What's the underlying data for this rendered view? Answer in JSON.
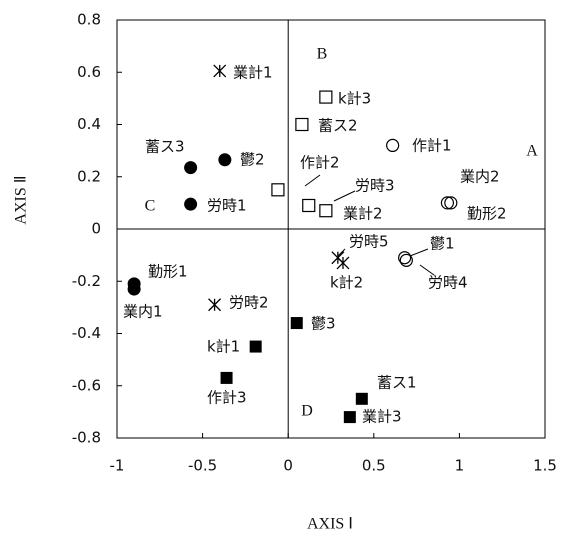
{
  "chart_data": {
    "type": "scatter",
    "x_label": "AXIS Ⅰ",
    "y_label": "AXIS Ⅱ",
    "xlim": [
      -1,
      1.5
    ],
    "xticks": [
      -1,
      -0.5,
      0,
      0.5,
      1,
      1.5
    ],
    "ylim": [
      -0.8,
      0.8
    ],
    "yticks": [
      -0.8,
      -0.6,
      -0.4,
      -0.2,
      0,
      0.2,
      0.4,
      0.6,
      0.8
    ],
    "annotations": [
      "A",
      "B",
      "C",
      "D"
    ],
    "points": [
      {
        "label": "業計1",
        "x": -0.4,
        "y": 0.605,
        "marker": "asterisk"
      },
      {
        "label": "労時2",
        "x": -0.43,
        "y": -0.29,
        "marker": "asterisk"
      },
      {
        "label": "労時5",
        "x": 0.29,
        "y": -0.11,
        "marker": "asterisk"
      },
      {
        "label": "k計2",
        "x": 0.32,
        "y": -0.13,
        "marker": "asterisk"
      },
      {
        "label": "k計3",
        "x": 0.22,
        "y": 0.505,
        "marker": "open-square"
      },
      {
        "label": "蓄ス2",
        "x": 0.08,
        "y": 0.4,
        "marker": "open-square"
      },
      {
        "label": "作計2",
        "x": -0.06,
        "y": 0.15,
        "marker": "open-square"
      },
      {
        "label": "労時3",
        "x": 0.12,
        "y": 0.09,
        "marker": "open-square"
      },
      {
        "label": "業計2",
        "x": 0.22,
        "y": 0.07,
        "marker": "open-square"
      },
      {
        "label": "作計1",
        "x": 0.61,
        "y": 0.32,
        "marker": "open-circle"
      },
      {
        "label": "業内2",
        "x": 0.93,
        "y": 0.1,
        "marker": "open-circle"
      },
      {
        "label": "勤形2",
        "x": 0.95,
        "y": 0.1,
        "marker": "open-circle"
      },
      {
        "label": "鬱1",
        "x": 0.68,
        "y": -0.11,
        "marker": "open-circle"
      },
      {
        "label": "労時4",
        "x": 0.69,
        "y": -0.12,
        "marker": "open-circle"
      },
      {
        "label": "蓄ス3",
        "x": -0.57,
        "y": 0.235,
        "marker": "filled-circle"
      },
      {
        "label": "鬱2",
        "x": -0.37,
        "y": 0.265,
        "marker": "filled-circle"
      },
      {
        "label": "労時1",
        "x": -0.57,
        "y": 0.095,
        "marker": "filled-circle"
      },
      {
        "label": "勤形1",
        "x": -0.9,
        "y": -0.21,
        "marker": "filled-circle"
      },
      {
        "label": "業内1",
        "x": -0.9,
        "y": -0.23,
        "marker": "filled-circle"
      },
      {
        "label": "鬱3",
        "x": 0.05,
        "y": -0.36,
        "marker": "filled-square"
      },
      {
        "label": "k計1",
        "x": -0.19,
        "y": -0.45,
        "marker": "filled-square"
      },
      {
        "label": "作計3",
        "x": -0.36,
        "y": -0.57,
        "marker": "filled-square"
      },
      {
        "label": "蓄ス1",
        "x": 0.43,
        "y": -0.65,
        "marker": "filled-square"
      },
      {
        "label": "業計3",
        "x": 0.36,
        "y": -0.72,
        "marker": "filled-square"
      }
    ]
  }
}
